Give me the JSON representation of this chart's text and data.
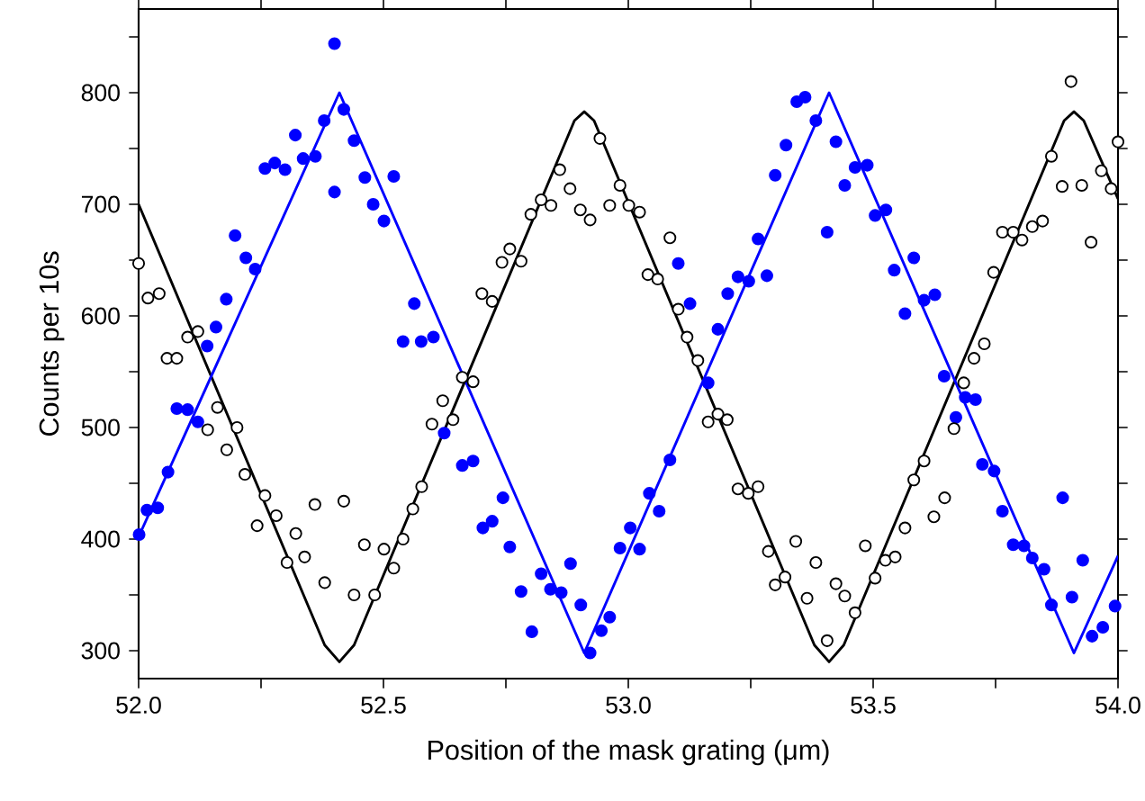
{
  "chart_data": {
    "type": "scatter",
    "xlabel": "Position of the  mask grating (μm)",
    "ylabel": "Counts per 10s",
    "xlim": [
      52.0,
      54.0
    ],
    "ylim": [
      275,
      875
    ],
    "xticks": [
      {
        "value": 52.0,
        "label": "52.0"
      },
      {
        "value": 52.25,
        "label": null
      },
      {
        "value": 52.5,
        "label": "52.5"
      },
      {
        "value": 52.75,
        "label": null
      },
      {
        "value": 53.0,
        "label": "53.0"
      },
      {
        "value": 53.25,
        "label": null
      },
      {
        "value": 53.5,
        "label": "53.5"
      },
      {
        "value": 53.75,
        "label": null
      },
      {
        "value": 54.0,
        "label": "54.0"
      }
    ],
    "yticks": [
      300,
      {
        "value": 350,
        "label": null
      },
      400,
      {
        "value": 450,
        "label": null
      },
      500,
      {
        "value": 550,
        "label": null
      },
      600,
      {
        "value": 650,
        "label": null
      },
      700,
      {
        "value": 750,
        "label": null
      },
      800,
      {
        "value": 850,
        "label": null
      }
    ],
    "grid": false,
    "series": [
      {
        "marker": "circle",
        "color": "#0000ff",
        "x": [
          52.001,
          52.017,
          52.039,
          52.06,
          52.078,
          52.1,
          52.121,
          52.14,
          52.158,
          52.179,
          52.197,
          52.219,
          52.238,
          52.258,
          52.278,
          52.299,
          52.32,
          52.336,
          52.361,
          52.379,
          52.4,
          52.4,
          52.419,
          52.44,
          52.462,
          52.479,
          52.501,
          52.521,
          52.54,
          52.563,
          52.577,
          52.602,
          52.624,
          52.661,
          52.683,
          52.703,
          52.722,
          52.744,
          52.758,
          52.781,
          52.803,
          52.822,
          52.841,
          52.863,
          52.882,
          52.903,
          52.922,
          52.945,
          52.962,
          52.983,
          53.004,
          53.023,
          53.043,
          53.063,
          53.085,
          53.102,
          53.126,
          53.163,
          53.183,
          53.203,
          53.224,
          53.246,
          53.265,
          53.283,
          53.3,
          53.322,
          53.344,
          53.361,
          53.383,
          53.406,
          53.424,
          53.442,
          53.463,
          53.488,
          53.504,
          53.526,
          53.543,
          53.565,
          53.583,
          53.604,
          53.626,
          53.645,
          53.669,
          53.688,
          53.709,
          53.723,
          53.747,
          53.764,
          53.786,
          53.808,
          53.825,
          53.849,
          53.864,
          53.887,
          53.906,
          53.928,
          53.947,
          53.969,
          53.994
        ],
        "values": [
          404,
          426,
          428,
          460,
          517,
          516,
          505,
          573,
          590,
          615,
          672,
          652,
          642,
          732,
          737,
          731,
          762,
          741,
          743,
          775,
          844,
          711,
          785,
          757,
          724,
          700,
          685,
          725,
          577,
          611,
          577,
          581,
          495,
          466,
          470,
          410,
          416,
          437,
          393,
          353,
          317,
          369,
          355,
          352,
          378,
          341,
          298,
          318,
          330,
          392,
          410,
          391,
          441,
          425,
          471,
          647,
          611,
          540,
          588,
          620,
          635,
          631,
          669,
          636,
          726,
          753,
          792,
          796,
          775,
          675,
          756,
          717,
          733,
          735,
          690,
          695,
          641,
          602,
          652,
          614,
          619,
          546,
          509,
          527,
          525,
          467,
          461,
          425,
          395,
          394,
          383,
          373,
          341,
          437,
          348,
          381,
          313,
          321,
          340
        ]
      },
      {
        "marker": "open circle",
        "color": "#000000",
        "x": [
          52.0,
          52.019,
          52.042,
          52.058,
          52.078,
          52.1,
          52.121,
          52.141,
          52.161,
          52.18,
          52.201,
          52.217,
          52.242,
          52.258,
          52.281,
          52.303,
          52.321,
          52.339,
          52.36,
          52.38,
          52.419,
          52.44,
          52.461,
          52.482,
          52.501,
          52.521,
          52.54,
          52.56,
          52.578,
          52.599,
          52.621,
          52.642,
          52.661,
          52.683,
          52.701,
          52.722,
          52.742,
          52.758,
          52.781,
          52.801,
          52.822,
          52.842,
          52.86,
          52.881,
          52.902,
          52.922,
          52.942,
          52.962,
          52.983,
          53.001,
          53.023,
          53.04,
          53.06,
          53.085,
          53.102,
          53.12,
          53.142,
          53.163,
          53.183,
          53.202,
          53.224,
          53.245,
          53.265,
          53.286,
          53.3,
          53.32,
          53.342,
          53.365,
          53.383,
          53.406,
          53.424,
          53.442,
          53.463,
          53.484,
          53.504,
          53.525,
          53.545,
          53.565,
          53.583,
          53.604,
          53.624,
          53.646,
          53.665,
          53.685,
          53.706,
          53.727,
          53.746,
          53.764,
          53.786,
          53.804,
          53.825,
          53.846,
          53.864,
          53.886,
          53.904,
          53.926,
          53.945,
          53.966,
          53.986,
          54.0
        ],
        "values": [
          647,
          616,
          620,
          562,
          562,
          581,
          586,
          498,
          518,
          480,
          500,
          458,
          412,
          439,
          421,
          379,
          405,
          384,
          431,
          361,
          434,
          350,
          395,
          350,
          391,
          374,
          400,
          427,
          447,
          503,
          524,
          507,
          545,
          541,
          620,
          613,
          648,
          660,
          649,
          691,
          704,
          699,
          731,
          714,
          695,
          686,
          759,
          699,
          717,
          699,
          693,
          637,
          633,
          670,
          606,
          581,
          560,
          505,
          512,
          507,
          445,
          441,
          447,
          389,
          359,
          366,
          398,
          347,
          379,
          309,
          360,
          349,
          334,
          394,
          365,
          381,
          384,
          410,
          453,
          470,
          420,
          437,
          499,
          540,
          562,
          575,
          639,
          675,
          675,
          668,
          680,
          685,
          743,
          716,
          810,
          717,
          666,
          730,
          714,
          756
        ]
      },
      {
        "type": "line",
        "marker": "none",
        "color": "#000000",
        "x": [
          52.0,
          52.38,
          52.41,
          52.44,
          52.89,
          52.91,
          52.93,
          53.38,
          53.41,
          53.44,
          53.89,
          53.91,
          53.93,
          54.0
        ],
        "values": [
          700,
          305,
          290,
          305,
          775,
          783,
          775,
          305,
          290,
          305,
          775,
          783,
          775,
          705
        ]
      },
      {
        "type": "line",
        "marker": "none",
        "color": "#0000ff",
        "x": [
          52.0,
          52.41,
          52.91,
          53.41,
          53.91,
          54.0
        ],
        "values": [
          402,
          800,
          298,
          800,
          298,
          385
        ]
      }
    ]
  }
}
